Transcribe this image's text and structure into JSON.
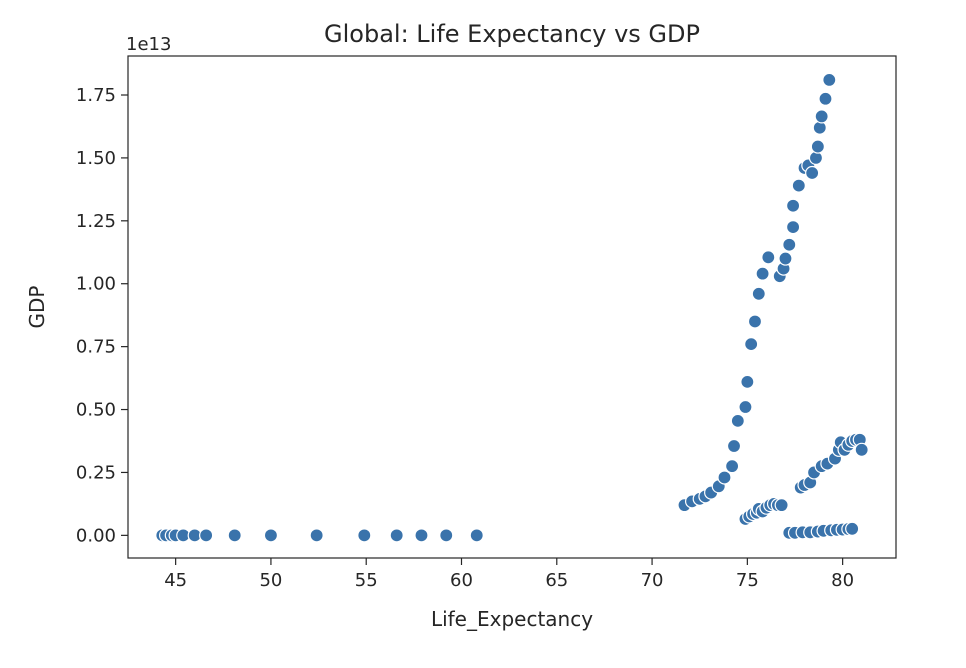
{
  "chart_data": {
    "type": "scatter",
    "title": "Global: Life Expectancy vs GDP",
    "xlabel": "Life_Expectancy",
    "ylabel": "GDP",
    "y_offset_text": "1e13",
    "xlim": [
      42.5,
      82.8
    ],
    "ylim": [
      -0.09,
      1.905
    ],
    "y_scale_multiplier": 10000000000000.0,
    "grid": false,
    "legend": "none",
    "marker_color": "#3a73ab",
    "x_ticks": [
      {
        "value": 45,
        "label": "45"
      },
      {
        "value": 50,
        "label": "50"
      },
      {
        "value": 55,
        "label": "55"
      },
      {
        "value": 60,
        "label": "60"
      },
      {
        "value": 65,
        "label": "65"
      },
      {
        "value": 70,
        "label": "70"
      },
      {
        "value": 75,
        "label": "75"
      },
      {
        "value": 80,
        "label": "80"
      }
    ],
    "y_ticks": [
      {
        "value": 0.0,
        "label": "0.00"
      },
      {
        "value": 0.25,
        "label": "0.25"
      },
      {
        "value": 0.5,
        "label": "0.50"
      },
      {
        "value": 0.75,
        "label": "0.75"
      },
      {
        "value": 1.0,
        "label": "1.00"
      },
      {
        "value": 1.25,
        "label": "1.25"
      },
      {
        "value": 1.5,
        "label": "1.50"
      },
      {
        "value": 1.75,
        "label": "1.75"
      }
    ],
    "points": [
      [
        44.3,
        0.0
      ],
      [
        44.5,
        0.0
      ],
      [
        44.8,
        0.0
      ],
      [
        45.0,
        0.0
      ],
      [
        45.4,
        0.0
      ],
      [
        46.0,
        0.0
      ],
      [
        46.6,
        0.0
      ],
      [
        48.1,
        0.0
      ],
      [
        50.0,
        0.0
      ],
      [
        52.4,
        0.0
      ],
      [
        54.9,
        0.0
      ],
      [
        56.6,
        0.0
      ],
      [
        57.9,
        0.0
      ],
      [
        59.2,
        0.0
      ],
      [
        60.8,
        0.0
      ],
      [
        71.7,
        0.12
      ],
      [
        72.1,
        0.135
      ],
      [
        72.5,
        0.145
      ],
      [
        72.8,
        0.155
      ],
      [
        73.1,
        0.17
      ],
      [
        73.5,
        0.195
      ],
      [
        73.8,
        0.23
      ],
      [
        74.2,
        0.275
      ],
      [
        74.3,
        0.355
      ],
      [
        74.5,
        0.455
      ],
      [
        74.9,
        0.51
      ],
      [
        75.0,
        0.61
      ],
      [
        75.2,
        0.76
      ],
      [
        75.4,
        0.85
      ],
      [
        75.6,
        0.96
      ],
      [
        75.8,
        1.04
      ],
      [
        76.1,
        1.105
      ],
      [
        76.7,
        1.03
      ],
      [
        76.9,
        1.06
      ],
      [
        77.0,
        1.1
      ],
      [
        77.2,
        1.155
      ],
      [
        77.4,
        1.225
      ],
      [
        77.4,
        1.31
      ],
      [
        77.7,
        1.39
      ],
      [
        78.0,
        1.46
      ],
      [
        78.2,
        1.47
      ],
      [
        78.4,
        1.44
      ],
      [
        78.6,
        1.5
      ],
      [
        78.7,
        1.545
      ],
      [
        78.8,
        1.62
      ],
      [
        78.9,
        1.665
      ],
      [
        79.1,
        1.735
      ],
      [
        79.3,
        1.81
      ],
      [
        74.9,
        0.065
      ],
      [
        75.1,
        0.075
      ],
      [
        75.3,
        0.085
      ],
      [
        75.5,
        0.09
      ],
      [
        75.6,
        0.105
      ],
      [
        75.8,
        0.095
      ],
      [
        76.0,
        0.11
      ],
      [
        76.2,
        0.12
      ],
      [
        76.4,
        0.125
      ],
      [
        76.6,
        0.12
      ],
      [
        76.8,
        0.12
      ],
      [
        77.8,
        0.19
      ],
      [
        78.0,
        0.2
      ],
      [
        78.3,
        0.21
      ],
      [
        78.5,
        0.25
      ],
      [
        78.9,
        0.275
      ],
      [
        79.2,
        0.285
      ],
      [
        79.6,
        0.305
      ],
      [
        79.8,
        0.34
      ],
      [
        79.9,
        0.37
      ],
      [
        80.1,
        0.34
      ],
      [
        80.3,
        0.36
      ],
      [
        80.5,
        0.375
      ],
      [
        80.7,
        0.38
      ],
      [
        80.9,
        0.38
      ],
      [
        81.0,
        0.34
      ],
      [
        77.2,
        0.01
      ],
      [
        77.5,
        0.01
      ],
      [
        77.9,
        0.012
      ],
      [
        78.3,
        0.012
      ],
      [
        78.7,
        0.015
      ],
      [
        79.0,
        0.018
      ],
      [
        79.4,
        0.02
      ],
      [
        79.7,
        0.022
      ],
      [
        80.0,
        0.023
      ],
      [
        80.3,
        0.025
      ],
      [
        80.5,
        0.026
      ]
    ]
  }
}
